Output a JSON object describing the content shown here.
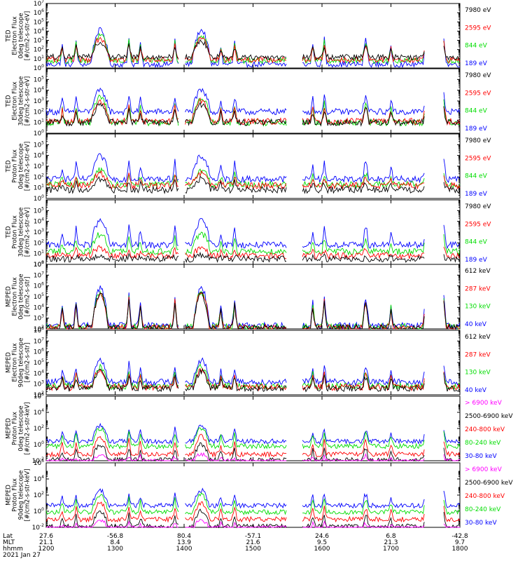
{
  "chart_data": [
    {
      "type": "line",
      "ylabel": [
        "TED",
        "Electron Flux",
        "0deg telescope",
        "[#/cm2-s-str-eV]"
      ],
      "ylim_exp": [
        0,
        7
      ],
      "ytick_exps": [
        0,
        1,
        2,
        3,
        4,
        5,
        6,
        7
      ],
      "legend": [
        {
          "label": "7980 eV",
          "color": "#000000"
        },
        {
          "label": "2595 eV",
          "color": "#ff0000"
        },
        {
          "label": "844 eV",
          "color": "#00dd00"
        },
        {
          "label": "189 eV",
          "color": "#0000ff"
        }
      ],
      "profile": "ted_e",
      "base": [
        1.2,
        0.9,
        0.8,
        0.4
      ],
      "peak": [
        2.8,
        3.2,
        3.5,
        4.1
      ]
    },
    {
      "type": "line",
      "ylabel": [
        "TED",
        "Electron Flux",
        "30deg telescope",
        "[#/cm2-s-str-eV]"
      ],
      "ylim_exp": [
        0,
        6
      ],
      "ytick_exps": [
        0,
        1,
        2,
        3,
        4,
        5
      ],
      "legend": [
        {
          "label": "7980 eV",
          "color": "#000000"
        },
        {
          "label": "2595 eV",
          "color": "#ff0000"
        },
        {
          "label": "844 eV",
          "color": "#00dd00"
        },
        {
          "label": "189 eV",
          "color": "#0000ff"
        }
      ],
      "profile": "ted_e",
      "base": [
        1.0,
        1.1,
        1.0,
        2.0
      ],
      "peak": [
        2.6,
        3.0,
        3.3,
        3.9
      ]
    },
    {
      "type": "line",
      "ylabel": [
        "TED",
        "Proton Flux",
        "0deg telescope",
        "[#/cm2-s-str-eV]"
      ],
      "ylim_exp": [
        0,
        6
      ],
      "ytick_exps": [
        0,
        1,
        2,
        3,
        4,
        5
      ],
      "legend": [
        {
          "label": "7980 eV",
          "color": "#000000"
        },
        {
          "label": "2595 eV",
          "color": "#ff0000"
        },
        {
          "label": "844 eV",
          "color": "#00dd00"
        },
        {
          "label": "189 eV",
          "color": "#0000ff"
        }
      ],
      "profile": "ted_p",
      "base": [
        0.8,
        1.2,
        1.3,
        1.8
      ],
      "peak": [
        1.8,
        2.3,
        2.6,
        3.9
      ]
    },
    {
      "type": "line",
      "ylabel": [
        "TED",
        "Proton Flux",
        "30deg telescope",
        "[#/cm2-s-str-eV]"
      ],
      "ylim_exp": [
        0,
        6
      ],
      "ytick_exps": [
        0,
        1,
        2,
        3,
        4,
        5
      ],
      "legend": [
        {
          "label": "7980 eV",
          "color": "#000000"
        },
        {
          "label": "2595 eV",
          "color": "#ff0000"
        },
        {
          "label": "844 eV",
          "color": "#00dd00"
        },
        {
          "label": "189 eV",
          "color": "#0000ff"
        }
      ],
      "profile": "ted_p30",
      "base": [
        0.5,
        0.8,
        1.2,
        1.8
      ],
      "peak": [
        0.8,
        1.5,
        2.8,
        4.0
      ]
    },
    {
      "type": "line",
      "ylabel": [
        "MEPED",
        "Electron Flux",
        "0deg telescope",
        "[#/cm2-s-str]"
      ],
      "ylim_exp": [
        2,
        8
      ],
      "ytick_exps": [
        2,
        3,
        4,
        5,
        6,
        7,
        8
      ],
      "legend": [
        {
          "label": "612 keV",
          "color": "#000000"
        },
        {
          "label": "287 keV",
          "color": "#ff0000"
        },
        {
          "label": "130 keV",
          "color": "#00dd00"
        },
        {
          "label": "40 keV",
          "color": "#0000ff"
        }
      ],
      "profile": "meped_e",
      "base": [
        2.1,
        2.1,
        2.2,
        2.3
      ],
      "peak": [
        5.2,
        5.3,
        5.4,
        5.8
      ]
    },
    {
      "type": "line",
      "ylabel": [
        "MEPED",
        "Electron Flux",
        "90deg telescope",
        "[#/cm2-s-str]"
      ],
      "ylim_exp": [
        2,
        8
      ],
      "ytick_exps": [
        2,
        3,
        4,
        5,
        6,
        7,
        8
      ],
      "legend": [
        {
          "label": "612 keV",
          "color": "#000000"
        },
        {
          "label": "287 keV",
          "color": "#ff0000"
        },
        {
          "label": "130 keV",
          "color": "#00dd00"
        },
        {
          "label": "40 keV",
          "color": "#0000ff"
        }
      ],
      "profile": "meped_e90",
      "base": [
        2.6,
        2.7,
        2.8,
        3.2
      ],
      "peak": [
        4.1,
        4.3,
        4.6,
        5.2
      ]
    },
    {
      "type": "line",
      "ylabel": [
        "MEPED",
        "Proton Flux",
        "0deg telescope",
        "[#/cm2-s-str-keV]"
      ],
      "ylim_exp": [
        -2,
        6
      ],
      "ytick_exps": [
        -2,
        0,
        2,
        4,
        6
      ],
      "legend": [
        {
          "label": "> 6900 keV",
          "color": "#ff00ff"
        },
        {
          "label": "2500-6900 keV",
          "color": "#000000"
        },
        {
          "label": "240-800 keV",
          "color": "#ff0000"
        },
        {
          "label": "80-240 keV",
          "color": "#00dd00"
        },
        {
          "label": "30-80 keV",
          "color": "#0000ff"
        }
      ],
      "profile": "meped_p",
      "base": [
        -2.1,
        -1.9,
        -1.2,
        -0.2,
        0.4
      ],
      "peak": [
        -1.2,
        0.0,
        1.0,
        2.0,
        2.4
      ]
    },
    {
      "type": "line",
      "ylabel": [
        "MEPED",
        "Proton Flux",
        "90deg telescope",
        "[#/cm2-s-str-keV]"
      ],
      "ylim_exp": [
        -2,
        6
      ],
      "ytick_exps": [
        -2,
        0,
        2,
        4,
        6
      ],
      "legend": [
        {
          "label": "> 6900 keV",
          "color": "#ff00ff"
        },
        {
          "label": "2500-6900 keV",
          "color": "#000000"
        },
        {
          "label": "240-800 keV",
          "color": "#ff0000"
        },
        {
          "label": "80-240 keV",
          "color": "#00dd00"
        },
        {
          "label": "30-80 keV",
          "color": "#0000ff"
        }
      ],
      "profile": "meped_p",
      "base": [
        -2.1,
        -1.9,
        -1.0,
        -0.1,
        0.7
      ],
      "peak": [
        -1.2,
        0.0,
        1.0,
        2.0,
        2.6
      ]
    }
  ],
  "x_axis": {
    "range": [
      "1200",
      "1800"
    ],
    "row_labels": [
      "Lat",
      "MLT",
      "hhmm"
    ],
    "ticks": [
      {
        "t": 1200,
        "lat": "27.6",
        "mlt": "21.1",
        "hhmm": "1200"
      },
      {
        "t": 1300,
        "lat": "-56.8",
        "mlt": "8.4",
        "hhmm": "1300"
      },
      {
        "t": 1400,
        "lat": "80.4",
        "mlt": "13.9",
        "hhmm": "1400"
      },
      {
        "t": 1500,
        "lat": "-57.1",
        "mlt": "21.6",
        "hhmm": "1500"
      },
      {
        "t": 1600,
        "lat": "24.6",
        "mlt": "9.5",
        "hhmm": "1600"
      },
      {
        "t": 1700,
        "lat": "6.8",
        "mlt": "21.3",
        "hhmm": "1700"
      },
      {
        "t": 1800,
        "lat": "-42.8",
        "mlt": "9.7",
        "hhmm": "1800"
      }
    ],
    "date": "2021 Jan 27"
  },
  "events": {
    "big_passes_min": [
      47,
      135
    ],
    "medium_passes_min": [
      278
    ],
    "spikes_min": [
      14,
      26,
      72,
      82,
      112,
      152,
      164,
      220,
      232,
      242,
      300,
      330,
      346,
      392,
      422,
      438,
      485,
      495,
      540
    ]
  }
}
